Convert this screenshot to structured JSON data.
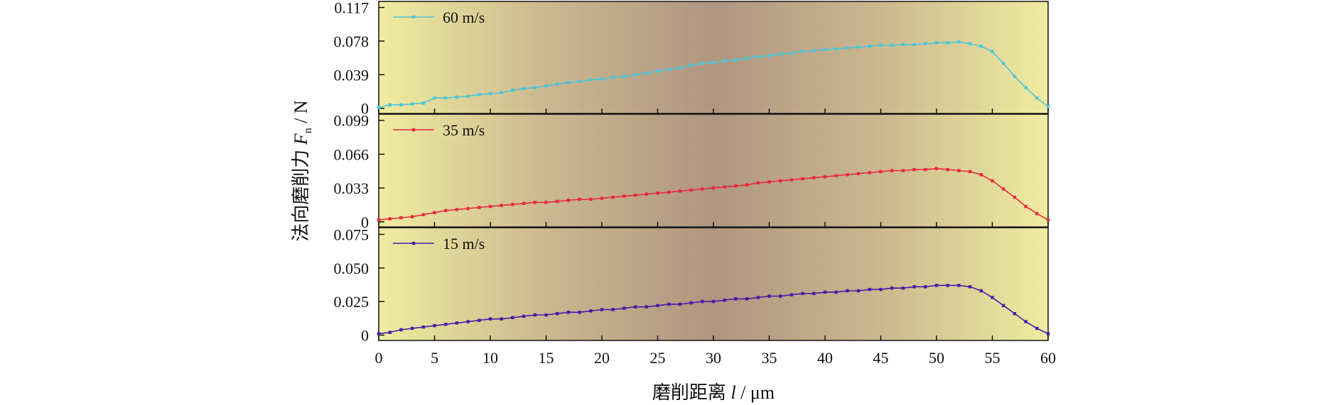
{
  "chart_data": {
    "type": "line",
    "layout": "three stacked panels sharing the x axis",
    "background": "gradient: light yellow at edges, brownish in the center",
    "xlabel": "磨削距离 l / μm",
    "ylabel": "法向磨削力 F_n / N",
    "ylabel_parts": {
      "main": "法向磨削力 ",
      "symbol": "F",
      "subscript": "n",
      "unit": " / N"
    },
    "xlabel_parts": {
      "main": "磨削距离 ",
      "symbol": "l",
      "unit": " / μm"
    },
    "xlim": [
      0,
      60
    ],
    "xticks": [
      0,
      5,
      10,
      15,
      20,
      25,
      30,
      35,
      40,
      45,
      50,
      55,
      60
    ],
    "grid": false,
    "legend_position": "top-left of each panel",
    "panels": [
      {
        "series_name": "60 m/s",
        "color": "#4cc6da",
        "marker": "small square",
        "ylim": [
          -0.006,
          0.124
        ],
        "yticks": [
          0,
          0.039,
          0.078,
          0.117
        ],
        "ytick_labels": [
          "0",
          "0.039",
          "0.078",
          "0.117"
        ],
        "points": [
          [
            0,
            0.001
          ],
          [
            1,
            0.004
          ],
          [
            2,
            0.004
          ],
          [
            3,
            0.005
          ],
          [
            4,
            0.006
          ],
          [
            5,
            0.012
          ],
          [
            6,
            0.012
          ],
          [
            7,
            0.013
          ],
          [
            8,
            0.014
          ],
          [
            9,
            0.016
          ],
          [
            10,
            0.017
          ],
          [
            11,
            0.018
          ],
          [
            12,
            0.021
          ],
          [
            13,
            0.023
          ],
          [
            14,
            0.024
          ],
          [
            15,
            0.026
          ],
          [
            16,
            0.028
          ],
          [
            17,
            0.03
          ],
          [
            18,
            0.031
          ],
          [
            19,
            0.033
          ],
          [
            20,
            0.034
          ],
          [
            21,
            0.036
          ],
          [
            22,
            0.037
          ],
          [
            23,
            0.039
          ],
          [
            24,
            0.041
          ],
          [
            25,
            0.043
          ],
          [
            26,
            0.045
          ],
          [
            27,
            0.047
          ],
          [
            28,
            0.05
          ],
          [
            29,
            0.052
          ],
          [
            30,
            0.053
          ],
          [
            31,
            0.055
          ],
          [
            32,
            0.056
          ],
          [
            33,
            0.058
          ],
          [
            34,
            0.06
          ],
          [
            35,
            0.061
          ],
          [
            36,
            0.063
          ],
          [
            37,
            0.064
          ],
          [
            38,
            0.066
          ],
          [
            39,
            0.067
          ],
          [
            40,
            0.068
          ],
          [
            41,
            0.069
          ],
          [
            42,
            0.07
          ],
          [
            43,
            0.071
          ],
          [
            44,
            0.072
          ],
          [
            45,
            0.073
          ],
          [
            46,
            0.073
          ],
          [
            47,
            0.074
          ],
          [
            48,
            0.074
          ],
          [
            49,
            0.075
          ],
          [
            50,
            0.076
          ],
          [
            51,
            0.076
          ],
          [
            52,
            0.077
          ],
          [
            53,
            0.075
          ],
          [
            54,
            0.072
          ],
          [
            55,
            0.066
          ],
          [
            56,
            0.052
          ],
          [
            57,
            0.037
          ],
          [
            58,
            0.024
          ],
          [
            59,
            0.012
          ],
          [
            60,
            0.002
          ]
        ]
      },
      {
        "series_name": "35 m/s",
        "color": "#e8293f",
        "marker": "small square",
        "ylim": [
          -0.005,
          0.105
        ],
        "yticks": [
          0,
          0.033,
          0.066,
          0.099
        ],
        "ytick_labels": [
          "0",
          "0.033",
          "0.066",
          "0.099"
        ],
        "points": [
          [
            0,
            0.002
          ],
          [
            1,
            0.003
          ],
          [
            2,
            0.004
          ],
          [
            3,
            0.005
          ],
          [
            4,
            0.007
          ],
          [
            5,
            0.009
          ],
          [
            6,
            0.011
          ],
          [
            7,
            0.012
          ],
          [
            8,
            0.013
          ],
          [
            9,
            0.014
          ],
          [
            10,
            0.015
          ],
          [
            11,
            0.016
          ],
          [
            12,
            0.017
          ],
          [
            13,
            0.018
          ],
          [
            14,
            0.019
          ],
          [
            15,
            0.019
          ],
          [
            16,
            0.02
          ],
          [
            17,
            0.021
          ],
          [
            18,
            0.022
          ],
          [
            19,
            0.022
          ],
          [
            20,
            0.023
          ],
          [
            21,
            0.024
          ],
          [
            22,
            0.025
          ],
          [
            23,
            0.026
          ],
          [
            24,
            0.027
          ],
          [
            25,
            0.028
          ],
          [
            26,
            0.029
          ],
          [
            27,
            0.03
          ],
          [
            28,
            0.031
          ],
          [
            29,
            0.032
          ],
          [
            30,
            0.033
          ],
          [
            31,
            0.034
          ],
          [
            32,
            0.035
          ],
          [
            33,
            0.036
          ],
          [
            34,
            0.038
          ],
          [
            35,
            0.039
          ],
          [
            36,
            0.04
          ],
          [
            37,
            0.041
          ],
          [
            38,
            0.042
          ],
          [
            39,
            0.043
          ],
          [
            40,
            0.044
          ],
          [
            41,
            0.045
          ],
          [
            42,
            0.046
          ],
          [
            43,
            0.047
          ],
          [
            44,
            0.048
          ],
          [
            45,
            0.049
          ],
          [
            46,
            0.05
          ],
          [
            47,
            0.05
          ],
          [
            48,
            0.051
          ],
          [
            49,
            0.051
          ],
          [
            50,
            0.052
          ],
          [
            51,
            0.051
          ],
          [
            52,
            0.05
          ],
          [
            53,
            0.049
          ],
          [
            54,
            0.046
          ],
          [
            55,
            0.04
          ],
          [
            56,
            0.032
          ],
          [
            57,
            0.024
          ],
          [
            58,
            0.015
          ],
          [
            59,
            0.008
          ],
          [
            60,
            0.002
          ]
        ]
      },
      {
        "series_name": "15 m/s",
        "color": "#4a1aa8",
        "marker": "small square",
        "ylim": [
          -0.004,
          0.08
        ],
        "yticks": [
          0,
          0.025,
          0.05,
          0.075
        ],
        "ytick_labels": [
          "0",
          "0.025",
          "0.050",
          "0.075"
        ],
        "points": [
          [
            0,
            0.001
          ],
          [
            1,
            0.002
          ],
          [
            2,
            0.004
          ],
          [
            3,
            0.005
          ],
          [
            4,
            0.006
          ],
          [
            5,
            0.007
          ],
          [
            6,
            0.008
          ],
          [
            7,
            0.009
          ],
          [
            8,
            0.01
          ],
          [
            9,
            0.011
          ],
          [
            10,
            0.012
          ],
          [
            11,
            0.012
          ],
          [
            12,
            0.013
          ],
          [
            13,
            0.014
          ],
          [
            14,
            0.015
          ],
          [
            15,
            0.015
          ],
          [
            16,
            0.016
          ],
          [
            17,
            0.017
          ],
          [
            18,
            0.017
          ],
          [
            19,
            0.018
          ],
          [
            20,
            0.019
          ],
          [
            21,
            0.019
          ],
          [
            22,
            0.02
          ],
          [
            23,
            0.021
          ],
          [
            24,
            0.021
          ],
          [
            25,
            0.022
          ],
          [
            26,
            0.023
          ],
          [
            27,
            0.023
          ],
          [
            28,
            0.024
          ],
          [
            29,
            0.025
          ],
          [
            30,
            0.025
          ],
          [
            31,
            0.026
          ],
          [
            32,
            0.027
          ],
          [
            33,
            0.027
          ],
          [
            34,
            0.028
          ],
          [
            35,
            0.029
          ],
          [
            36,
            0.029
          ],
          [
            37,
            0.03
          ],
          [
            38,
            0.031
          ],
          [
            39,
            0.031
          ],
          [
            40,
            0.032
          ],
          [
            41,
            0.032
          ],
          [
            42,
            0.033
          ],
          [
            43,
            0.033
          ],
          [
            44,
            0.034
          ],
          [
            45,
            0.034
          ],
          [
            46,
            0.035
          ],
          [
            47,
            0.035
          ],
          [
            48,
            0.036
          ],
          [
            49,
            0.036
          ],
          [
            50,
            0.037
          ],
          [
            51,
            0.037
          ],
          [
            52,
            0.037
          ],
          [
            53,
            0.036
          ],
          [
            54,
            0.033
          ],
          [
            55,
            0.028
          ],
          [
            56,
            0.022
          ],
          [
            57,
            0.016
          ],
          [
            58,
            0.01
          ],
          [
            59,
            0.005
          ],
          [
            60,
            0.001
          ]
        ]
      }
    ]
  }
}
